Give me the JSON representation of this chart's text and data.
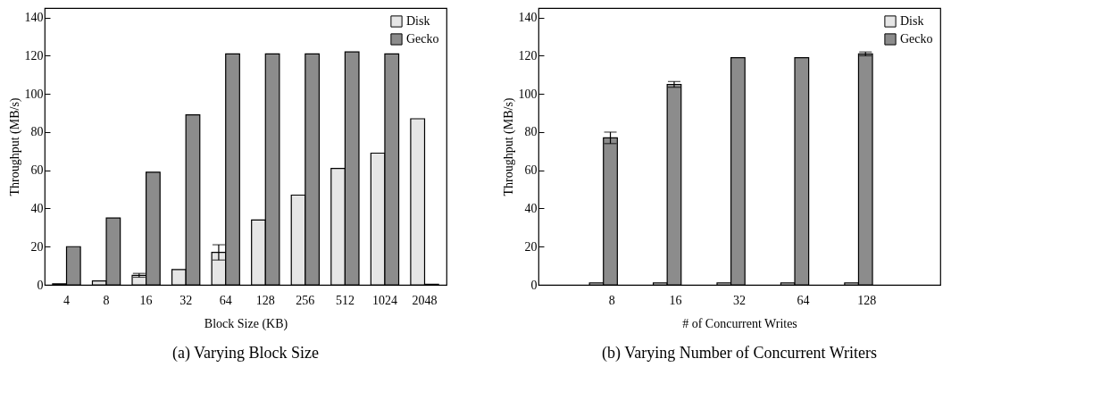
{
  "chart_data": [
    {
      "type": "bar",
      "title": "(a) Varying Block Size",
      "xlabel": "Block Size (KB)",
      "ylabel": "Throughput (MB/s)",
      "categories": [
        "4",
        "8",
        "16",
        "32",
        "64",
        "128",
        "256",
        "512",
        "1024",
        "2048"
      ],
      "ylim": [
        0,
        145
      ],
      "yticks": [
        0,
        20,
        40,
        60,
        80,
        100,
        120,
        140
      ],
      "grid": false,
      "legend": "top right",
      "series": [
        {
          "name": "Disk",
          "color": "#e6e6e6",
          "values": [
            0.5,
            2,
            5,
            8,
            17,
            34,
            47,
            61,
            69,
            87
          ],
          "errors": [
            null,
            null,
            1,
            null,
            4,
            null,
            null,
            null,
            null,
            null
          ]
        },
        {
          "name": "Gecko",
          "color": "#8c8c8c",
          "values": [
            20,
            35,
            59,
            89,
            121,
            121,
            121,
            122,
            121,
            0.3
          ],
          "errors": [
            null,
            null,
            null,
            null,
            null,
            null,
            null,
            null,
            null,
            null
          ]
        }
      ]
    },
    {
      "type": "bar",
      "title": "(b) Varying Number of Concurrent Writers",
      "xlabel": "# of Concurrent Writes",
      "ylabel": "Throughput (MB/s)",
      "categories": [
        "8",
        "16",
        "32",
        "64",
        "128"
      ],
      "ylim": [
        0,
        145
      ],
      "yticks": [
        0,
        20,
        40,
        60,
        80,
        100,
        120,
        140
      ],
      "grid": false,
      "legend": "top right",
      "series": [
        {
          "name": "Disk",
          "color": "#e6e6e6",
          "values": [
            1,
            1,
            1,
            1,
            1
          ],
          "errors": [
            null,
            null,
            null,
            null,
            null
          ]
        },
        {
          "name": "Gecko",
          "color": "#8c8c8c",
          "values": [
            77,
            105,
            119,
            119,
            121
          ],
          "errors": [
            3,
            1.5,
            null,
            null,
            1
          ]
        }
      ]
    }
  ]
}
